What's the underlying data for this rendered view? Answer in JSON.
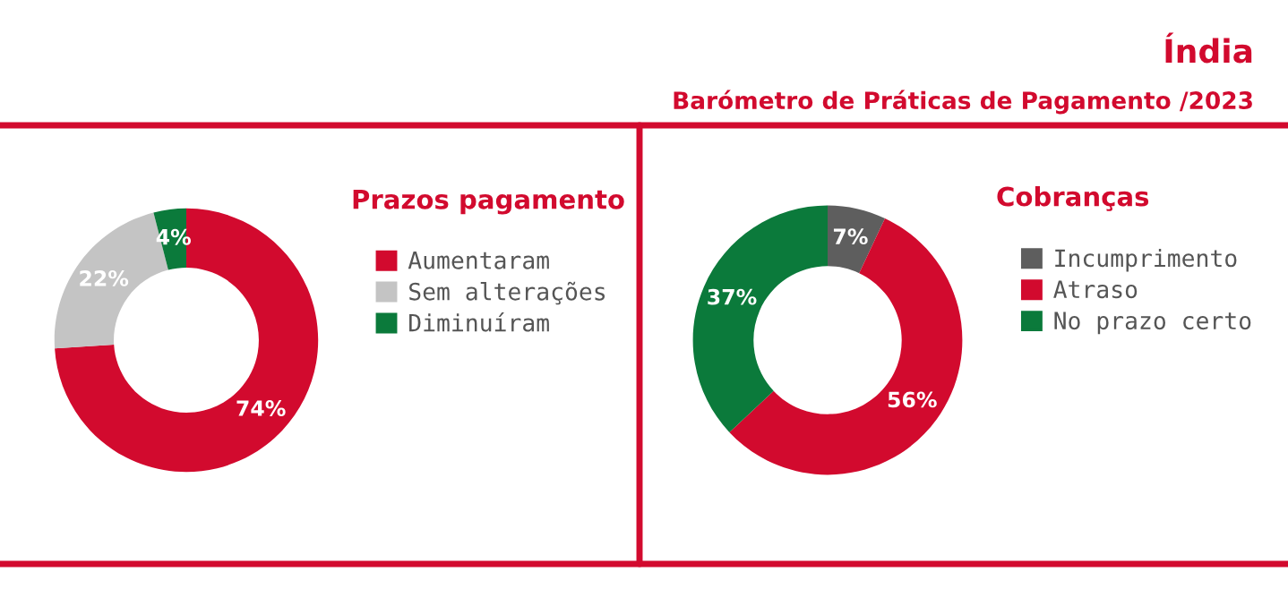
{
  "chart_data": [
    {
      "type": "donut",
      "title": "Prazos pagamento",
      "annotations": [
        "Índia",
        "Barómetro de Práticas de Pagamento /2023"
      ],
      "categories": [
        "Aumentaram",
        "Sem alterações",
        "Diminuíram"
      ],
      "values": [
        74,
        22,
        4
      ],
      "colors": [
        "#d20a2e",
        "#c4c4c4",
        "#0b7a3b"
      ],
      "value_labels": [
        "74%",
        "22%",
        "4%"
      ],
      "legend": "right"
    },
    {
      "type": "donut",
      "title": "Cobranças",
      "categories": [
        "Incumprimento",
        "Atraso",
        "No prazo certo"
      ],
      "values": [
        7,
        56,
        37
      ],
      "colors": [
        "#5e5e5e",
        "#d20a2e",
        "#0b7a3b"
      ],
      "value_labels": [
        "7%",
        "56%",
        "37%"
      ],
      "legend": "right"
    }
  ]
}
